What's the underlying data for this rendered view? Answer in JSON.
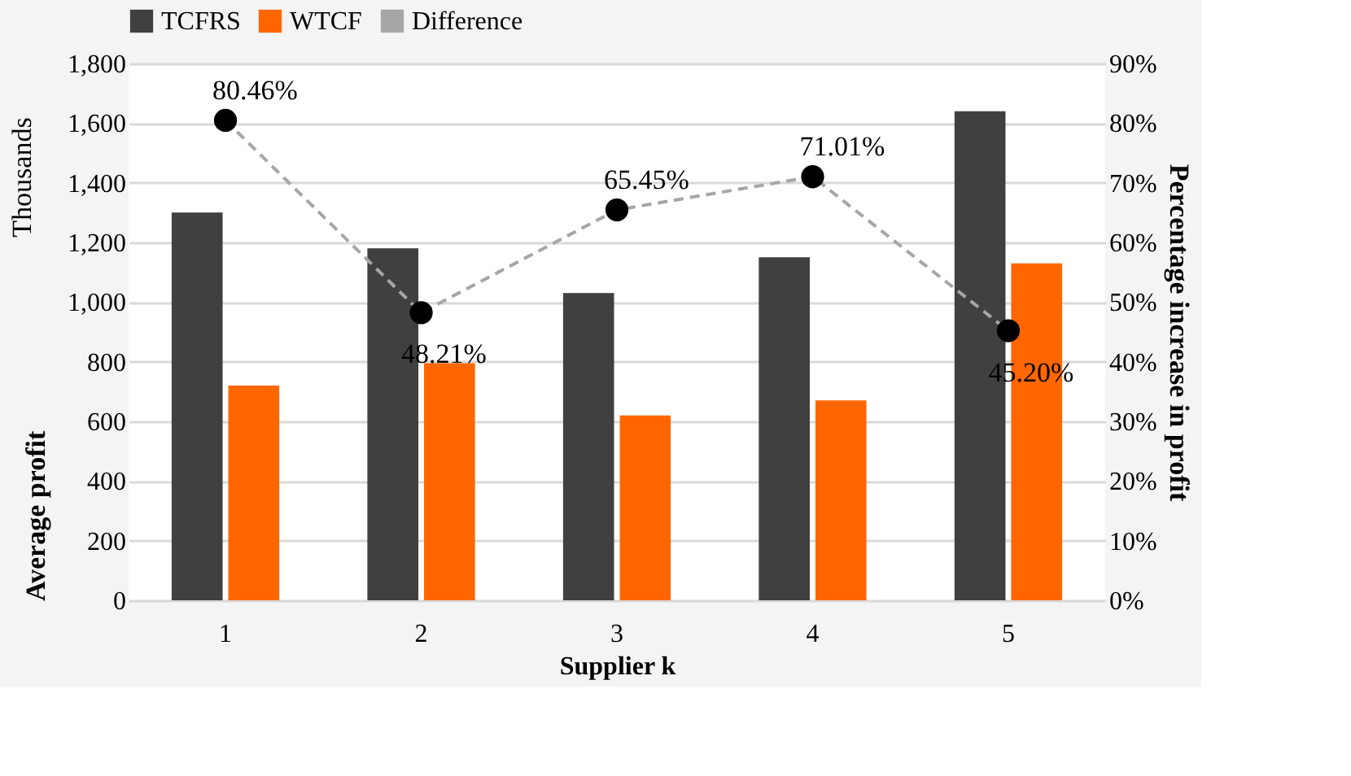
{
  "chart_data": {
    "type": "bar",
    "xlabel": "Supplier k",
    "ylabel": "Average profit",
    "y2label": "Percentage increase in profit",
    "categories": [
      "1",
      "2",
      "3",
      "4",
      "5"
    ],
    "series": [
      {
        "name": "TCFRS",
        "color": "#404040",
        "values": [
          1300,
          1180,
          1030,
          1150,
          1640
        ]
      },
      {
        "name": "WTCF",
        "color": "#ff6600",
        "values": [
          720,
          795,
          620,
          670,
          1130
        ]
      },
      {
        "name": "Difference",
        "type": "line",
        "axis": "y2",
        "color": "#a6a6a6",
        "line_style": "dashed",
        "marker": "circle",
        "values": [
          80.46,
          48.21,
          65.45,
          71.01,
          45.2
        ],
        "value_labels": [
          "80.46%",
          "48.21%",
          "65.45%",
          "71.01%",
          "45.20%"
        ]
      }
    ],
    "ylim": [
      0,
      1800
    ],
    "yticks": [
      {
        "value": 0,
        "label": "0"
      },
      {
        "value": 200,
        "label": "200"
      },
      {
        "value": 400,
        "label": "400"
      },
      {
        "value": 600,
        "label": "600"
      },
      {
        "value": 800,
        "label": "800"
      },
      {
        "value": 1000,
        "label": "1,000"
      },
      {
        "value": 1200,
        "label": "1,200"
      },
      {
        "value": 1400,
        "label": "1,400"
      },
      {
        "value": 1600,
        "label": "1,600"
      },
      {
        "value": 1800,
        "label": "1,800"
      }
    ],
    "y2lim": [
      0,
      90
    ],
    "y2ticks": [
      {
        "value": 0,
        "label": "0%"
      },
      {
        "value": 10,
        "label": "10%"
      },
      {
        "value": 20,
        "label": "20%"
      },
      {
        "value": 30,
        "label": "30%"
      },
      {
        "value": 40,
        "label": "40%"
      },
      {
        "value": 50,
        "label": "50%"
      },
      {
        "value": 60,
        "label": "60%"
      },
      {
        "value": 70,
        "label": "70%"
      },
      {
        "value": 80,
        "label": "80%"
      },
      {
        "value": 90,
        "label": "90%"
      }
    ],
    "grid": "y",
    "legend": "top",
    "annotations": [
      "Thousands"
    ]
  }
}
